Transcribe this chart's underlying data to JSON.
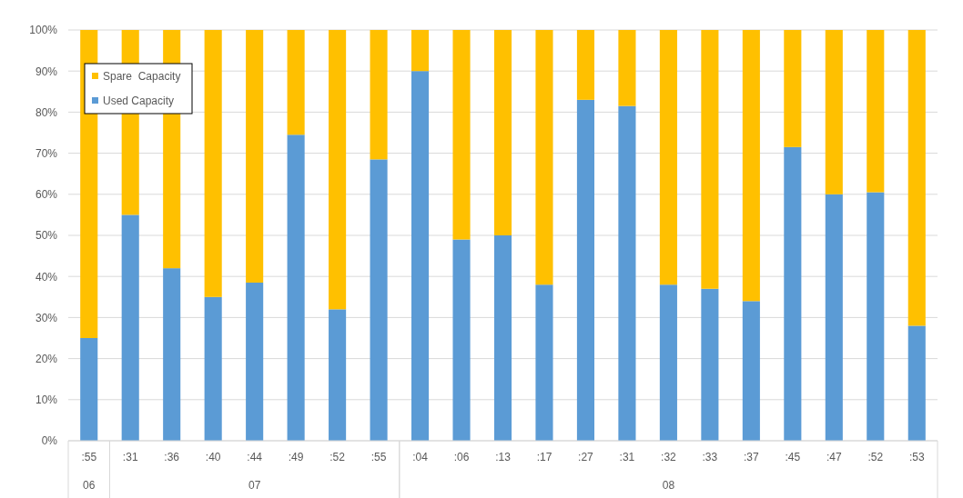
{
  "chart_data": {
    "type": "bar",
    "stacked": true,
    "categories": [
      ":55",
      ":31",
      ":36",
      ":40",
      ":44",
      ":49",
      ":52",
      ":55",
      ":04",
      ":06",
      ":13",
      ":17",
      ":27",
      ":31",
      ":32",
      ":33",
      ":37",
      ":45",
      ":47",
      ":52",
      ":53"
    ],
    "series": [
      {
        "name": "Used Capacity",
        "color": "#5b9bd5",
        "values": [
          25,
          55,
          42,
          35,
          38.5,
          74.5,
          32,
          68.5,
          90,
          49,
          50,
          38,
          83,
          81.5,
          38,
          37,
          34,
          71.5,
          60,
          60.5,
          28
        ]
      },
      {
        "name": "Spare  Capacity",
        "color": "#ffc000",
        "values": [
          75,
          45,
          58,
          65,
          61.5,
          25.5,
          68,
          31.5,
          10,
          51,
          50,
          62,
          17,
          18.5,
          62,
          63,
          66,
          28.5,
          40,
          39.5,
          72
        ]
      }
    ],
    "ylim": [
      0,
      100
    ],
    "yticks": [
      {
        "value": 0,
        "label": "0%"
      },
      {
        "value": 10,
        "label": "10%"
      },
      {
        "value": 20,
        "label": "20%"
      },
      {
        "value": 30,
        "label": "30%"
      },
      {
        "value": 40,
        "label": "40%"
      },
      {
        "value": 50,
        "label": "50%"
      },
      {
        "value": 60,
        "label": "60%"
      },
      {
        "value": 70,
        "label": "70%"
      },
      {
        "value": 80,
        "label": "80%"
      },
      {
        "value": 90,
        "label": "90%"
      },
      {
        "value": 100,
        "label": "100%"
      }
    ],
    "grid": "y",
    "legend": "top left",
    "annotations": [
      "06",
      "07",
      "08"
    ]
  }
}
